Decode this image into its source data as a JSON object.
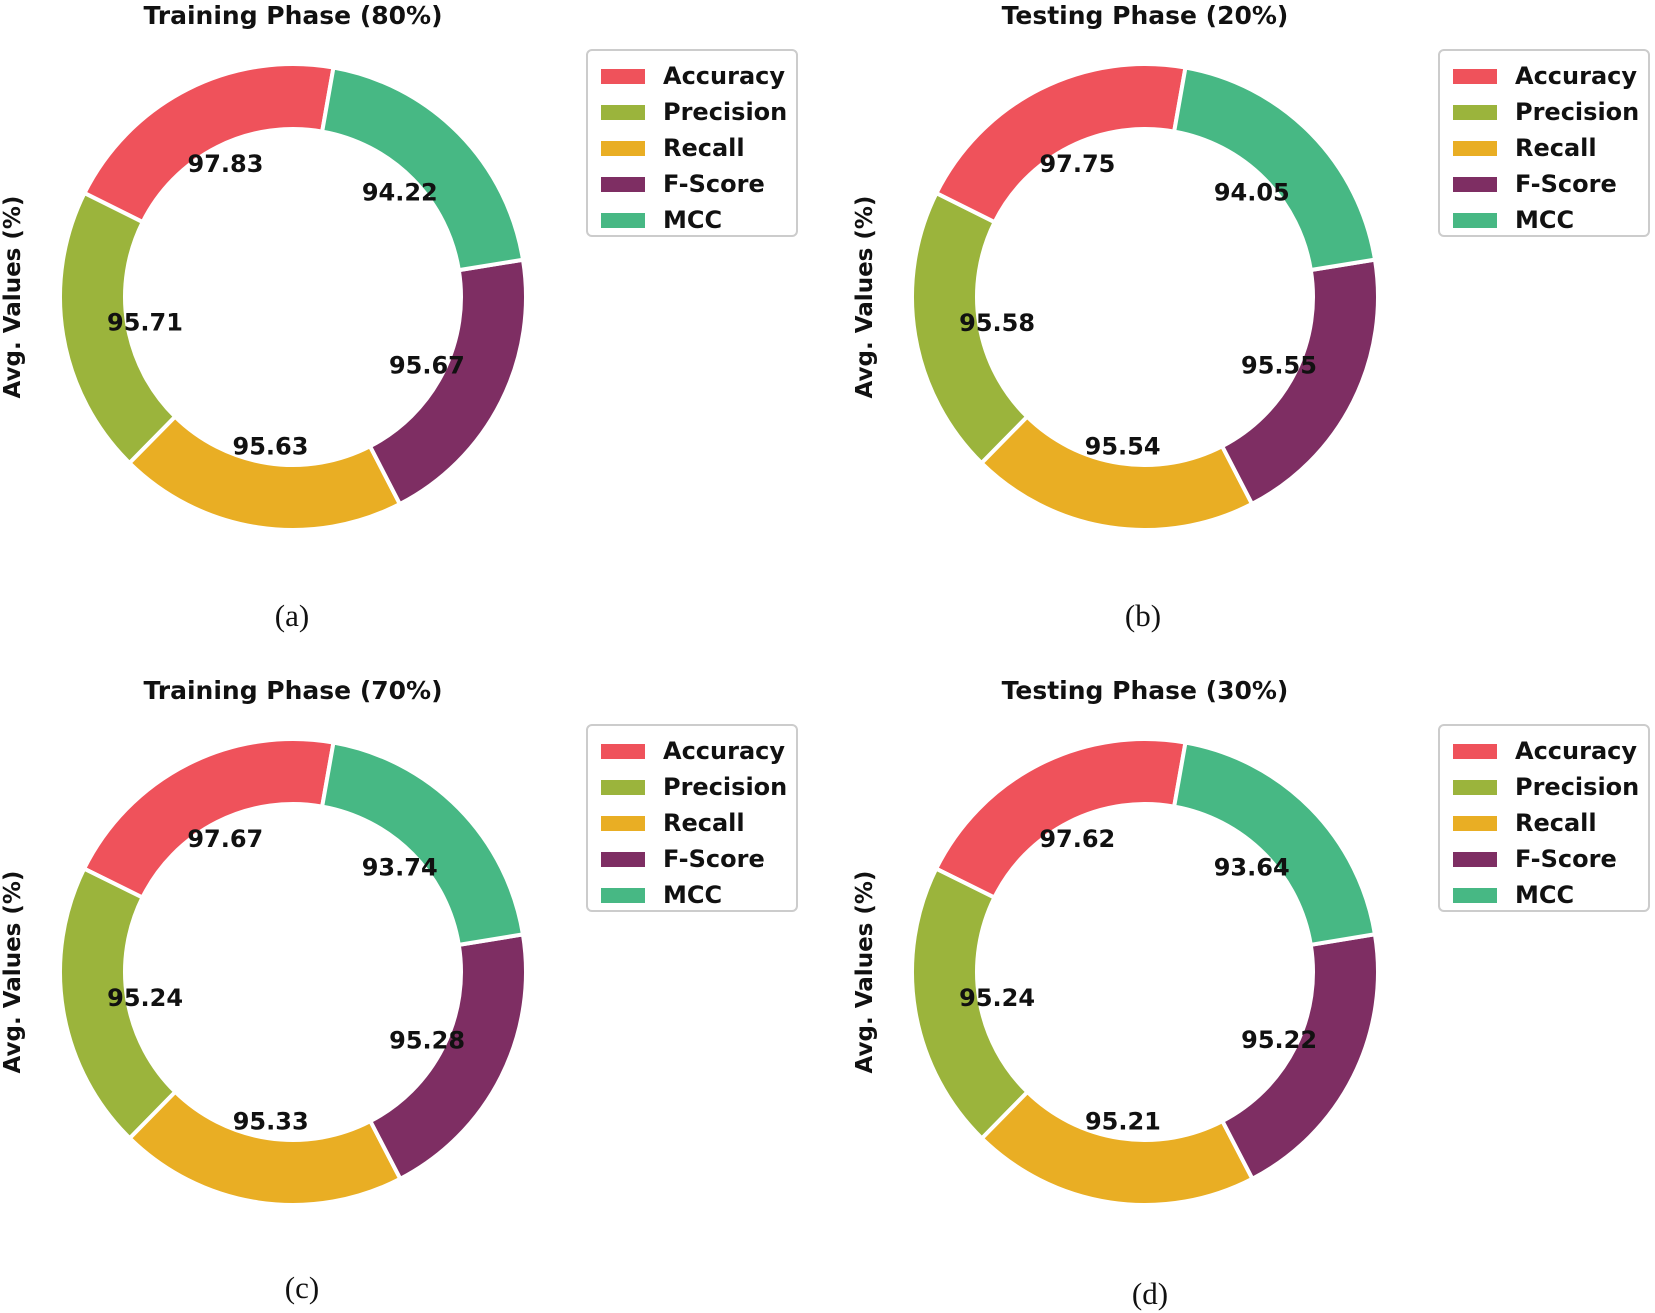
{
  "chart_data": [
    {
      "type": "donut",
      "title": "Training Phase (80%)",
      "ylabel": "Avg. Values (%)",
      "caption": "(a)",
      "categories": [
        "Accuracy",
        "Precision",
        "Recall",
        "F-Score",
        "MCC"
      ],
      "values": [
        97.83,
        95.71,
        95.63,
        95.67,
        94.22
      ],
      "colors": [
        "#EF525B",
        "#9BB43C",
        "#E9AE24",
        "#7E2E63",
        "#47B884"
      ],
      "legend_position": "upper-right"
    },
    {
      "type": "donut",
      "title": "Testing Phase (20%)",
      "ylabel": "Avg. Values (%)",
      "caption": "(b)",
      "categories": [
        "Accuracy",
        "Precision",
        "Recall",
        "F-Score",
        "MCC"
      ],
      "values": [
        97.75,
        95.58,
        95.54,
        95.55,
        94.05
      ],
      "colors": [
        "#EF525B",
        "#9BB43C",
        "#E9AE24",
        "#7E2E63",
        "#47B884"
      ],
      "legend_position": "upper-right"
    },
    {
      "type": "donut",
      "title": "Training Phase (70%)",
      "ylabel": "Avg. Values (%)",
      "caption": "(c)",
      "categories": [
        "Accuracy",
        "Precision",
        "Recall",
        "F-Score",
        "MCC"
      ],
      "values": [
        97.67,
        95.24,
        95.33,
        95.28,
        93.74
      ],
      "colors": [
        "#EF525B",
        "#9BB43C",
        "#E9AE24",
        "#7E2E63",
        "#47B884"
      ],
      "legend_position": "upper-right"
    },
    {
      "type": "donut",
      "title": "Testing Phase (30%)",
      "ylabel": "Avg. Values (%)",
      "caption": "(d)",
      "categories": [
        "Accuracy",
        "Precision",
        "Recall",
        "F-Score",
        "MCC"
      ],
      "values": [
        97.62,
        95.24,
        95.21,
        95.22,
        93.64
      ],
      "colors": [
        "#EF525B",
        "#9BB43C",
        "#E9AE24",
        "#7E2E63",
        "#47B884"
      ],
      "legend_position": "upper-right"
    }
  ]
}
